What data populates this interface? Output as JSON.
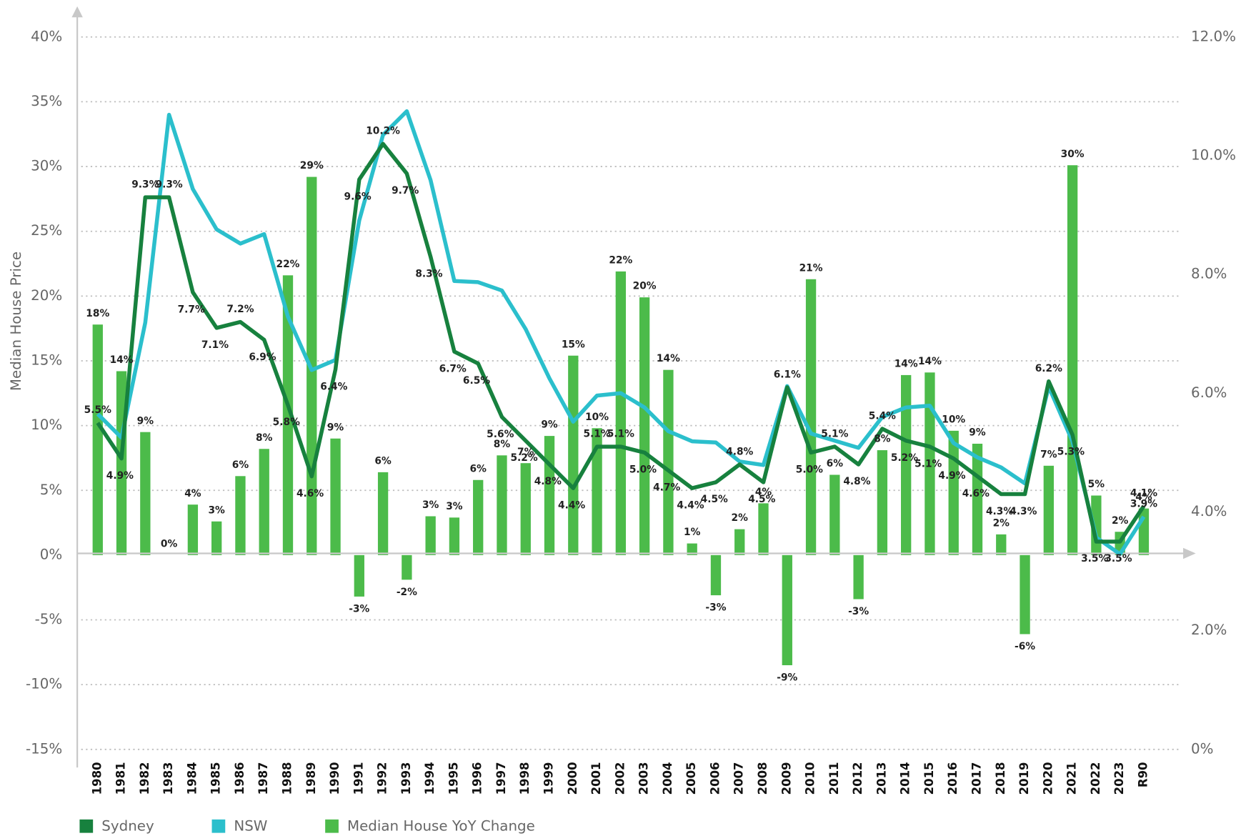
{
  "chart_data": {
    "type": "combo",
    "y_label": "Median House Price",
    "categories": [
      "1980",
      "1981",
      "1982",
      "1983",
      "1984",
      "1985",
      "1986",
      "1987",
      "1988",
      "1989",
      "1990",
      "1991",
      "1992",
      "1993",
      "1994",
      "1995",
      "1996",
      "1997",
      "1998",
      "1999",
      "2000",
      "2001",
      "2002",
      "2003",
      "2004",
      "2005",
      "2006",
      "2007",
      "2008",
      "2009",
      "2010",
      "2011",
      "2012",
      "2013",
      "2014",
      "2015",
      "2016",
      "2017",
      "2018",
      "2019",
      "2020",
      "2021",
      "2022",
      "2023",
      "R90"
    ],
    "ylim": [
      -15,
      40
    ],
    "yticks": [
      {
        "value": 40,
        "label": "40%"
      },
      {
        "value": 35,
        "label": "35%"
      },
      {
        "value": 30,
        "label": "30%"
      },
      {
        "value": 25,
        "label": "25%"
      },
      {
        "value": 20,
        "label": "20%"
      },
      {
        "value": 15,
        "label": "15%"
      },
      {
        "value": 10,
        "label": "10%"
      },
      {
        "value": 5,
        "label": "5%"
      },
      {
        "value": 0,
        "label": "0%"
      },
      {
        "value": -5,
        "label": "-5%"
      },
      {
        "value": -10,
        "label": "-10%"
      },
      {
        "value": -15,
        "label": "-15%"
      }
    ],
    "y2lim": [
      0,
      12
    ],
    "y2ticks": [
      {
        "value": 12,
        "label": "12.0%"
      },
      {
        "value": 10,
        "label": "10.0%"
      },
      {
        "value": 8,
        "label": "8.0%"
      },
      {
        "value": 6,
        "label": "6.0%"
      },
      {
        "value": 4,
        "label": "4.0%"
      },
      {
        "value": 2,
        "label": "2.0%"
      },
      {
        "value": 0,
        "label": "0%"
      }
    ],
    "grid": true,
    "legend": "bottom-left",
    "series": [
      {
        "name": "Sydney",
        "type": "line",
        "axis": "y2",
        "color": "#17813e",
        "values": [
          5.5,
          4.9,
          9.3,
          9.3,
          7.7,
          7.1,
          7.2,
          6.9,
          5.8,
          4.6,
          6.4,
          9.6,
          10.2,
          9.7,
          8.3,
          6.7,
          6.5,
          5.6,
          5.2,
          4.8,
          4.4,
          5.1,
          5.1,
          5.0,
          4.7,
          4.4,
          4.5,
          4.8,
          4.5,
          6.1,
          5.0,
          5.1,
          4.8,
          5.4,
          5.2,
          5.1,
          4.9,
          4.6,
          4.3,
          4.3,
          6.2,
          5.3,
          3.5,
          3.5,
          4.1
        ],
        "value_labels": [
          "5.5%",
          "4.9%",
          "9.3%",
          "9.3%",
          "7.7%",
          "7.1%",
          "7.2%",
          "6.9%",
          "5.8%",
          "4.6%",
          "6.4%",
          "9.6%",
          "10.2%",
          "9.7%",
          "8.3%",
          "6.7%",
          "6.5%",
          "5.6%",
          "5.2%",
          "4.8%",
          "4.4%",
          "5.1%",
          "5.1%",
          "5.0%",
          "4.7%",
          "4.4%",
          "4.5%",
          "4.8%",
          "4.5%",
          "6.1%",
          "5.0%",
          "5.1%",
          "4.8%",
          "5.4%",
          "5.2%",
          "5.1%",
          "4.9%",
          "4.6%",
          "4.3%",
          "4.3%",
          "6.2%",
          "5.3%",
          "3.5%",
          "3.5%",
          "4.1%"
        ]
      },
      {
        "name": "NSW",
        "type": "line",
        "axis": "y2",
        "color": "#2bbfcc",
        "values": [
          5.65,
          5.25,
          7.19,
          10.69,
          9.44,
          8.76,
          8.52,
          8.68,
          7.29,
          6.39,
          6.56,
          8.91,
          10.35,
          10.75,
          9.59,
          7.89,
          7.87,
          7.73,
          7.08,
          6.25,
          5.52,
          5.96,
          6.0,
          5.76,
          5.36,
          5.19,
          5.17,
          4.85,
          4.79,
          6.12,
          5.32,
          5.2,
          5.08,
          5.6,
          5.76,
          5.79,
          5.16,
          4.92,
          4.75,
          4.48,
          6.11,
          5.19,
          3.57,
          3.29,
          3.92
        ],
        "value_labels": [
          null,
          null,
          null,
          null,
          null,
          null,
          null,
          null,
          null,
          null,
          null,
          null,
          null,
          null,
          null,
          null,
          null,
          null,
          null,
          null,
          null,
          null,
          null,
          null,
          null,
          null,
          null,
          null,
          null,
          null,
          null,
          null,
          null,
          null,
          null,
          null,
          null,
          null,
          null,
          null,
          null,
          null,
          null,
          null,
          "3.9%"
        ]
      },
      {
        "name": "Median House YoY Change",
        "type": "bar",
        "color": "#4cbb4a",
        "values": [
          17.8,
          14.2,
          9.5,
          0,
          3.9,
          2.6,
          6.1,
          8.2,
          21.6,
          29.2,
          9.0,
          -3.2,
          6.4,
          -1.9,
          3.0,
          2.9,
          5.8,
          7.7,
          7.1,
          9.2,
          15.4,
          9.8,
          21.9,
          19.9,
          14.3,
          0.9,
          -3.1,
          2.0,
          4.0,
          -8.5,
          21.3,
          6.2,
          -3.4,
          8.1,
          13.9,
          14.1,
          9.6,
          8.6,
          1.6,
          -6.1,
          6.9,
          30.1,
          4.6,
          1.8,
          3.6
        ],
        "value_labels": [
          "18%",
          "14%",
          "9%",
          "0%",
          "4%",
          "3%",
          "6%",
          "8%",
          "22%",
          "29%",
          "9%",
          "-3%",
          "6%",
          "-2%",
          "3%",
          "3%",
          "6%",
          "8%",
          "7%",
          "9%",
          "15%",
          "10%",
          "22%",
          "20%",
          "14%",
          "1%",
          "-3%",
          "2%",
          "4%",
          "-9%",
          "21%",
          "6%",
          "-3%",
          "8%",
          "14%",
          "14%",
          "10%",
          "9%",
          "2%",
          "-6%",
          "7%",
          "30%",
          "5%",
          "2%",
          "4%"
        ]
      }
    ]
  }
}
